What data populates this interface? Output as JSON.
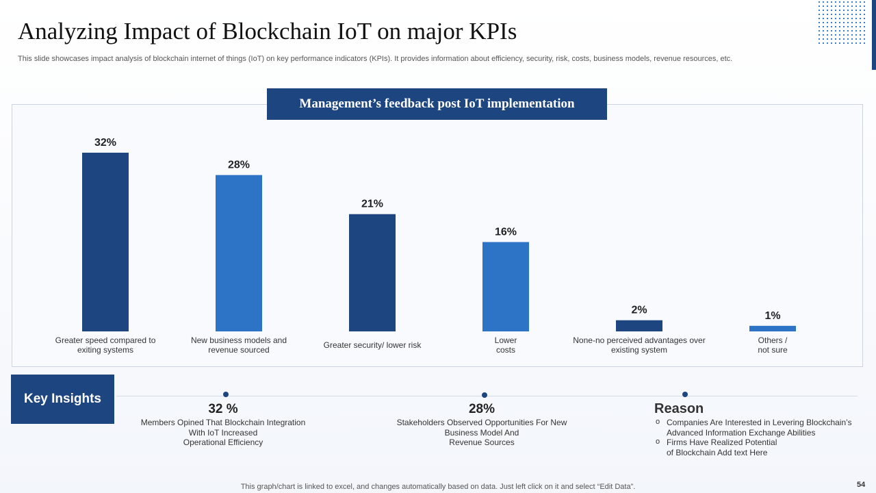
{
  "title": "Analyzing Impact of Blockchain IoT on major KPIs",
  "subtitle": "This slide showcases impact analysis of blockchain internet of things (IoT) on key performance indicators (KPIs). It provides information about efficiency, security, risk, costs, business models, revenue resources, etc.",
  "chart_data": {
    "type": "bar",
    "title": "Management’s feedback post IoT implementation",
    "categories": [
      "Greater speed compared to\nexiting systems",
      "New business models and\nrevenue sourced",
      "Greater security/ lower risk",
      "Lower\ncosts",
      "None-no perceived advantages over\nexisting system",
      "Others /\nnot sure"
    ],
    "values": [
      32,
      28,
      21,
      16,
      2,
      1
    ],
    "value_labels": [
      "32%",
      "28%",
      "21%",
      "16%",
      "2%",
      "1%"
    ],
    "colors": [
      "#1d4580",
      "#2e74c6",
      "#1d4580",
      "#2e74c6",
      "#1d4580",
      "#2e74c6"
    ]
  },
  "insights": {
    "heading": "Key Insights",
    "items": [
      {
        "value": "32 %",
        "text": "Members Opined That Blockchain Integration\nWith IoT Increased\nOperational Efficiency"
      },
      {
        "value": "28%",
        "text": "Stakeholders Observed Opportunities For New\nBusiness Model And\nRevenue Sources"
      }
    ],
    "reason": {
      "heading": "Reason",
      "bullets": [
        "Companies Are Interested in Levering Blockchain’s\nAdvanced Information Exchange Abilities",
        "Firms Have Realized Potential\nof Blockchain Add text  Here"
      ]
    }
  },
  "footer": "This graph/chart is linked to excel,  and changes automatically based on data. Just left click on it and select “Edit Data”.",
  "page_number": "54"
}
